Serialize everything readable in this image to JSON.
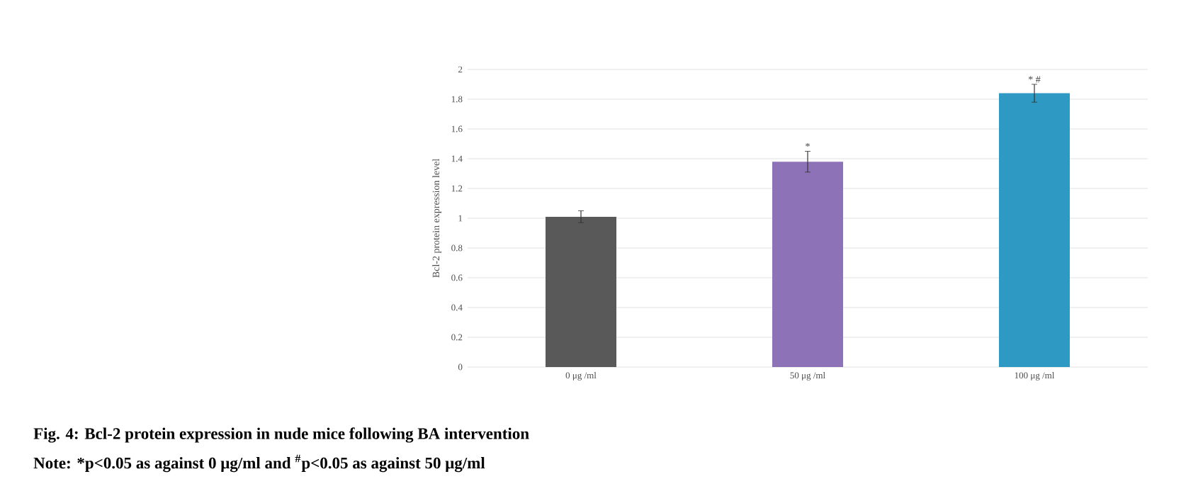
{
  "chart_data": {
    "type": "bar",
    "title": "Fig. 4: Bcl-2 protein expression in nude mice following BA intervention",
    "ylabel": "Bcl-2  protein expression level",
    "categories": [
      "0 μg /ml",
      "50 μg /ml",
      "100 μg /ml"
    ],
    "values": [
      1.01,
      1.38,
      1.84
    ],
    "errors": [
      0.04,
      0.07,
      0.06
    ],
    "colors": [
      "#595959",
      "#8e72b8",
      "#2e9ac4"
    ],
    "ylim": [
      0,
      2
    ],
    "yticks": [
      0,
      0.2,
      0.4,
      0.6,
      0.8,
      1,
      1.2,
      1.4,
      1.6,
      1.8,
      2
    ],
    "grid": "y",
    "annotations": [
      "*",
      "* #",
      "Note: *p<0.05 as against 0 μg/ml and $^{#}$p<0.05 as against 50 μg/ml"
    ]
  }
}
